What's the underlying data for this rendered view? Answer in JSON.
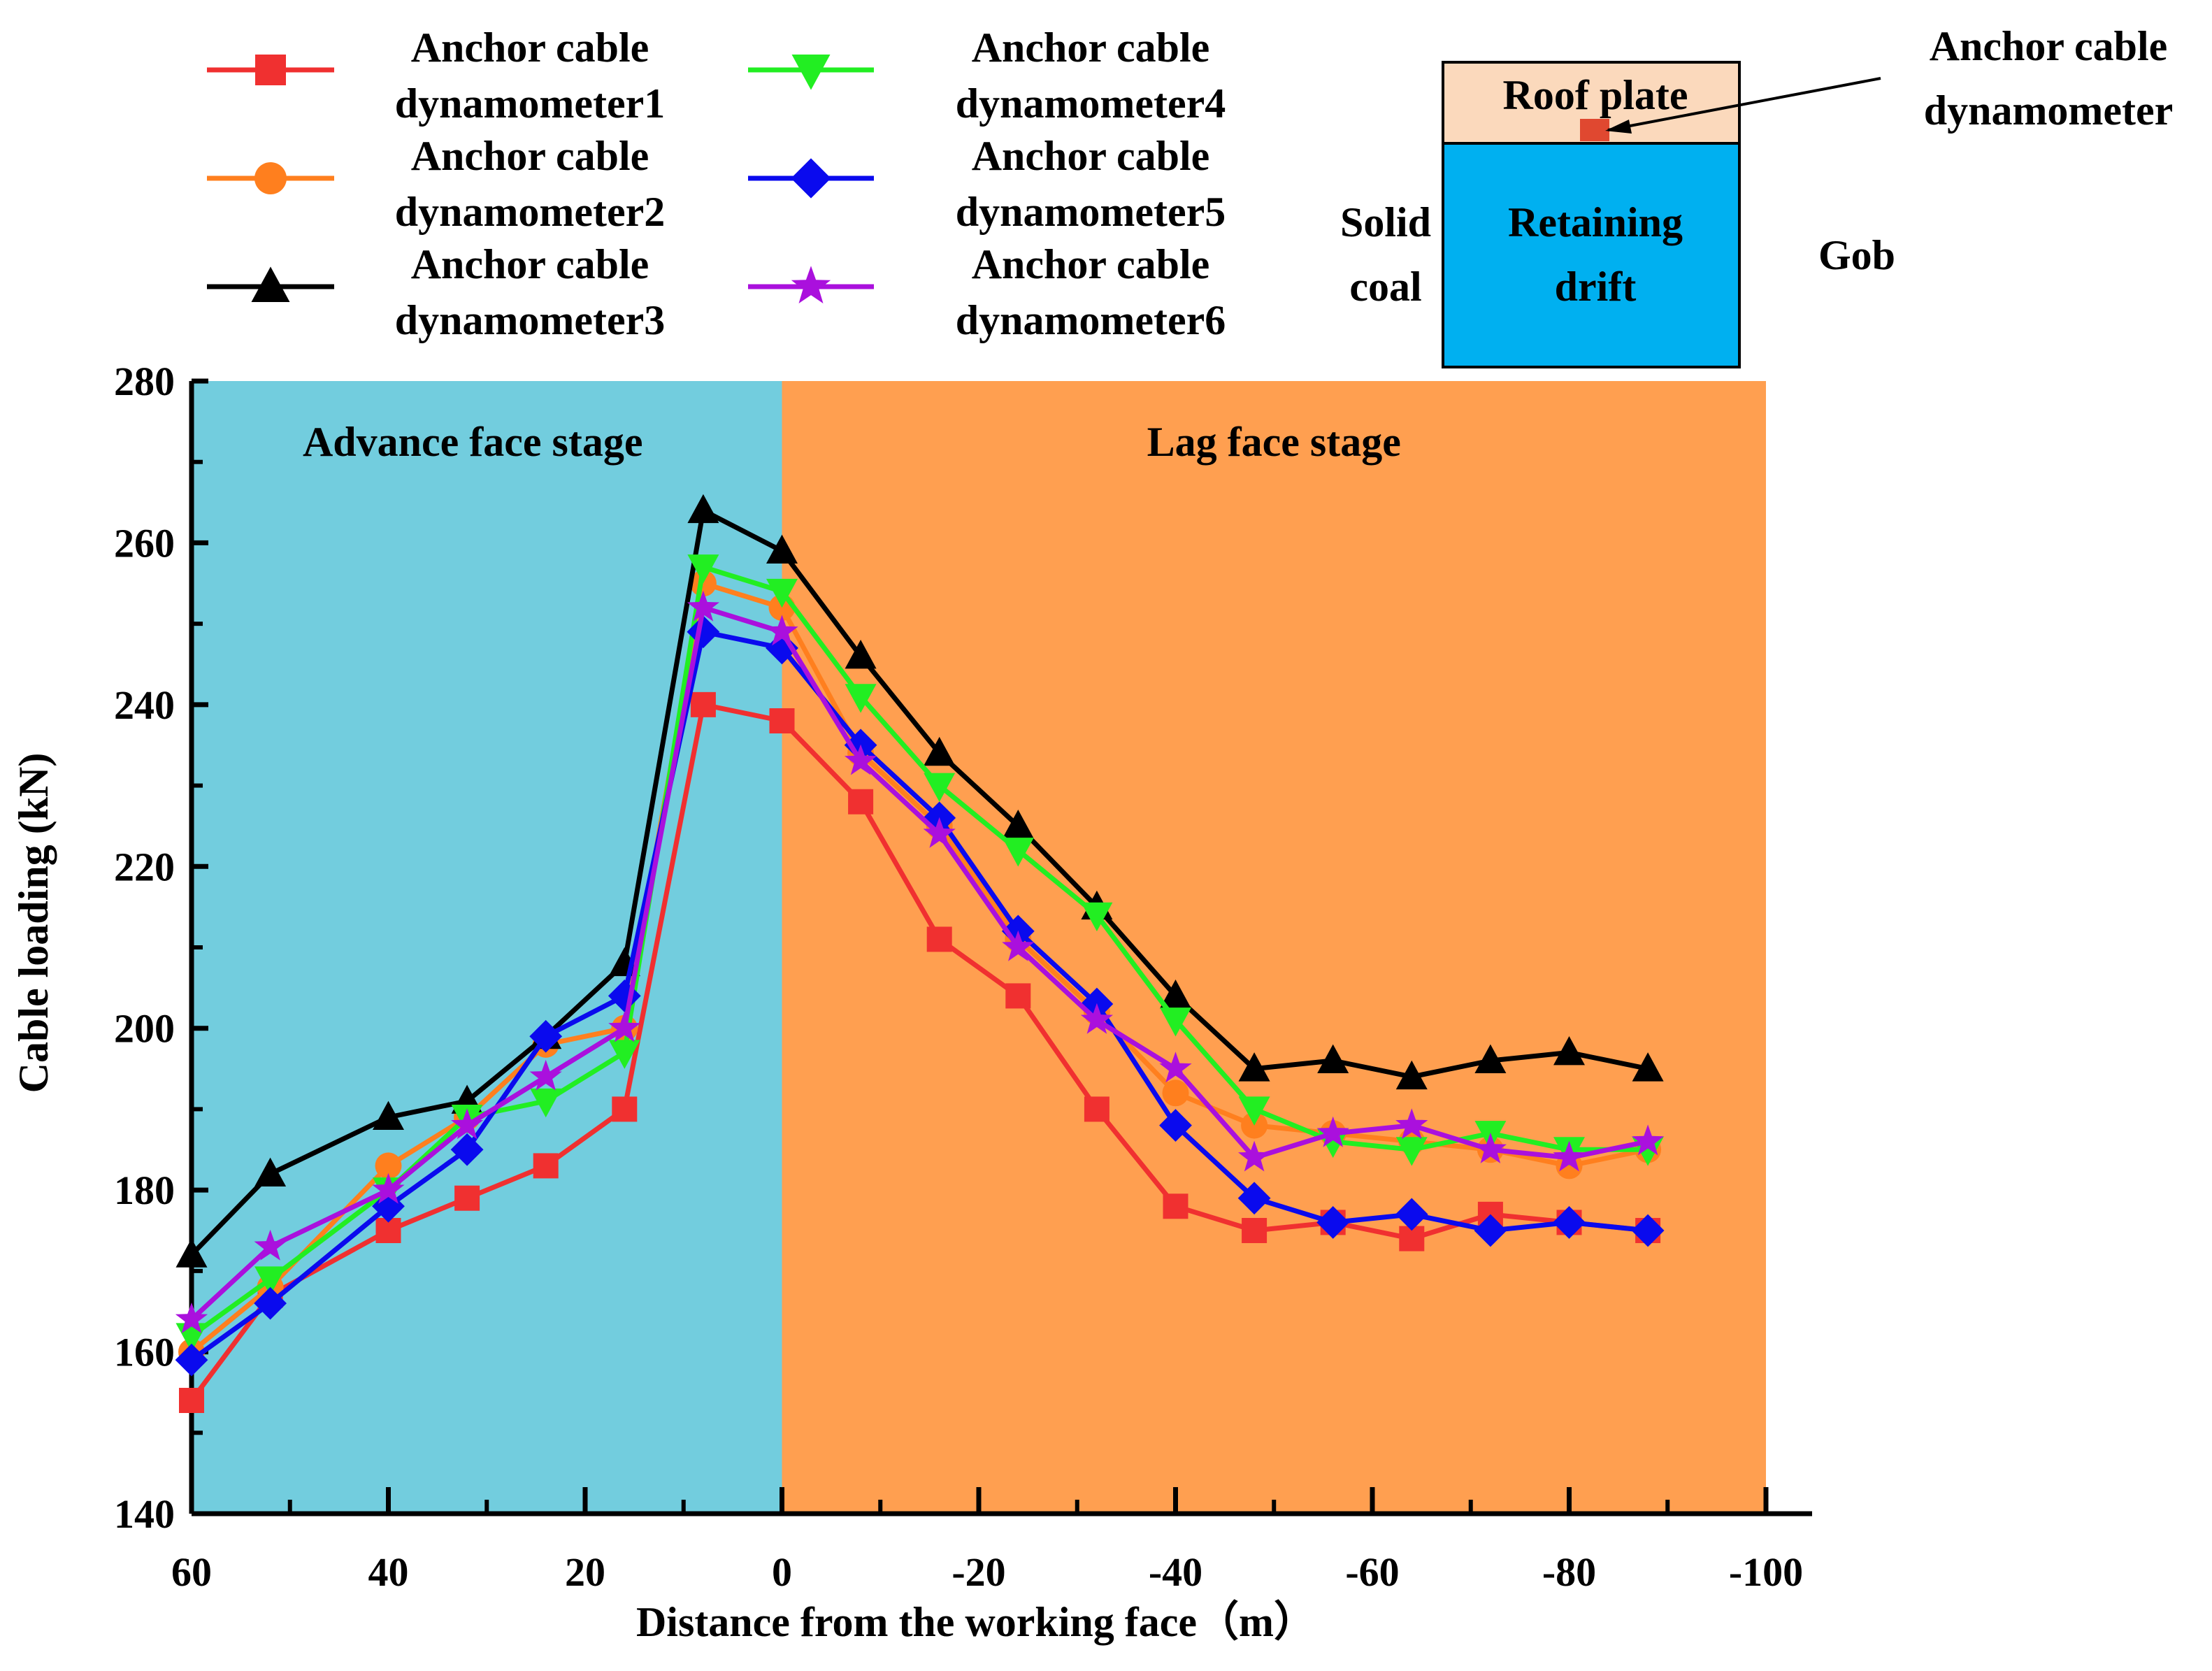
{
  "chart_data": {
    "type": "line",
    "xlabel": "Distance from the working face（m）",
    "ylabel": "Cable loading (kN)",
    "xlim": [
      60,
      -100
    ],
    "ylim": [
      140,
      280
    ],
    "xticks": [
      60,
      40,
      20,
      0,
      -20,
      -40,
      -60,
      -80,
      -100
    ],
    "yticks": [
      140,
      160,
      180,
      200,
      220,
      240,
      260,
      280
    ],
    "stages": [
      {
        "label": "Advance face stage",
        "from": 60,
        "to": 0,
        "color": "#72CDDE"
      },
      {
        "label": "Lag face stage",
        "from": 0,
        "to": -100,
        "color": "#FF9F50"
      }
    ],
    "x": [
      60,
      52,
      40,
      32,
      24,
      16,
      8,
      0,
      -8,
      -16,
      -24,
      -32,
      -40,
      -48,
      -56,
      -64,
      -72,
      -80,
      -88
    ],
    "series": [
      {
        "name": "Anchor cable dynamometer1",
        "color": "#F03030",
        "marker": "square",
        "values": [
          154,
          167,
          175,
          179,
          183,
          190,
          240,
          238,
          228,
          211,
          204,
          190,
          178,
          175,
          176,
          174,
          177,
          176,
          175
        ]
      },
      {
        "name": "Anchor cable dynamometer2",
        "color": "#FF7F1E",
        "marker": "circle",
        "values": [
          160,
          168,
          183,
          189,
          198,
          200,
          255,
          252,
          234,
          225,
          211,
          202,
          192,
          188,
          187,
          186,
          185,
          183,
          185
        ]
      },
      {
        "name": "Anchor cable dynamometer3",
        "color": "#000000",
        "marker": "triangle-up",
        "values": [
          172,
          182,
          189,
          191,
          199,
          208,
          264,
          259,
          246,
          234,
          225,
          215,
          204,
          195,
          196,
          194,
          196,
          197,
          195
        ]
      },
      {
        "name": "Anchor cable dynamometer4",
        "color": "#22EE22",
        "marker": "triangle-down",
        "values": [
          162,
          169,
          180,
          189,
          191,
          197,
          257,
          254,
          241,
          230,
          222,
          214,
          201,
          190,
          186,
          185,
          187,
          185,
          185
        ]
      },
      {
        "name": "Anchor cable dynamometer5",
        "color": "#0A0AEE",
        "marker": "diamond",
        "values": [
          159,
          166,
          178,
          185,
          199,
          204,
          249,
          247,
          235,
          226,
          212,
          203,
          188,
          179,
          176,
          177,
          175,
          176,
          175
        ]
      },
      {
        "name": "Anchor cable dynamometer6",
        "color": "#AA10DD",
        "marker": "star",
        "values": [
          164,
          173,
          180,
          188,
          194,
          200,
          252,
          249,
          233,
          224,
          210,
          201,
          195,
          184,
          187,
          188,
          185,
          184,
          186
        ]
      }
    ]
  },
  "legend": {
    "items": [
      {
        "line1": "Anchor cable",
        "line2": "dynamometer1"
      },
      {
        "line1": "Anchor cable",
        "line2": "dynamometer2"
      },
      {
        "line1": "Anchor cable",
        "line2": "dynamometer3"
      },
      {
        "line1": "Anchor cable",
        "line2": "dynamometer4"
      },
      {
        "line1": "Anchor cable",
        "line2": "dynamometer5"
      },
      {
        "line1": "Anchor cable",
        "line2": "dynamometer6"
      }
    ]
  },
  "inset": {
    "roof_plate": "Roof plate",
    "retaining_line1": "Retaining",
    "retaining_line2": "drift",
    "solid_line1": "Solid",
    "solid_line2": "coal",
    "gob": "Gob",
    "dynamometer_line1": "Anchor cable",
    "dynamometer_line2": "dynamometer",
    "roof_color": "#FBD9BC",
    "drift_color": "#00B0F0",
    "sensor_color": "#E04830"
  }
}
